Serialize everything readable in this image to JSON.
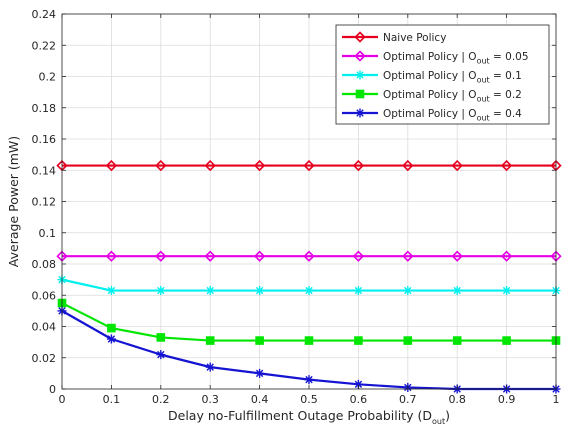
{
  "chart_data": {
    "type": "line",
    "xlabel": "Delay no-Fulfillment Outage Probability (D",
    "xlabel_sub": "out",
    "xlabel_close": ")",
    "ylabel": "Average Power (mW)",
    "xlim": [
      0,
      1
    ],
    "ylim": [
      0,
      0.24
    ],
    "x": [
      0,
      0.1,
      0.2,
      0.3,
      0.4,
      0.5,
      0.6,
      0.7,
      0.8,
      0.9,
      1.0
    ],
    "xticks": [
      "0",
      "0.1",
      "0.2",
      "0.3",
      "0.4",
      "0.5",
      "0.6",
      "0.7",
      "0.8",
      "0.9",
      "1"
    ],
    "yticks": [
      "0",
      "0.02",
      "0.04",
      "0.06",
      "0.08",
      "0.1",
      "0.12",
      "0.14",
      "0.16",
      "0.18",
      "0.2",
      "0.22",
      "0.24"
    ],
    "grid": true,
    "legend_position": "top-right",
    "series": [
      {
        "name": "Naive Policy",
        "name_sub": "",
        "name_tail": "",
        "color": "#e6001f",
        "marker": "diamond",
        "values": [
          0.143,
          0.143,
          0.143,
          0.143,
          0.143,
          0.143,
          0.143,
          0.143,
          0.143,
          0.143,
          0.143
        ]
      },
      {
        "name": "Optimal Policy | O",
        "name_sub": "out",
        "name_tail": " = 0.05",
        "color": "#e600e6",
        "marker": "diamond",
        "values": [
          0.085,
          0.085,
          0.085,
          0.085,
          0.085,
          0.085,
          0.085,
          0.085,
          0.085,
          0.085,
          0.085
        ]
      },
      {
        "name": "Optimal Policy | O",
        "name_sub": "out",
        "name_tail": " = 0.1",
        "color": "#00f0f0",
        "marker": "star",
        "values": [
          0.07,
          0.063,
          0.063,
          0.063,
          0.063,
          0.063,
          0.063,
          0.063,
          0.063,
          0.063,
          0.063
        ]
      },
      {
        "name": "Optimal Policy | O",
        "name_sub": "out",
        "name_tail": " = 0.2",
        "color": "#00e600",
        "marker": "square",
        "values": [
          0.055,
          0.039,
          0.033,
          0.031,
          0.031,
          0.031,
          0.031,
          0.031,
          0.031,
          0.031,
          0.031
        ]
      },
      {
        "name": "Optimal Policy | O",
        "name_sub": "out",
        "name_tail": " = 0.4",
        "color": "#1414d2",
        "marker": "star",
        "values": [
          0.05,
          0.032,
          0.022,
          0.014,
          0.01,
          0.006,
          0.003,
          0.001,
          0.0,
          0.0,
          0.0
        ]
      }
    ]
  }
}
